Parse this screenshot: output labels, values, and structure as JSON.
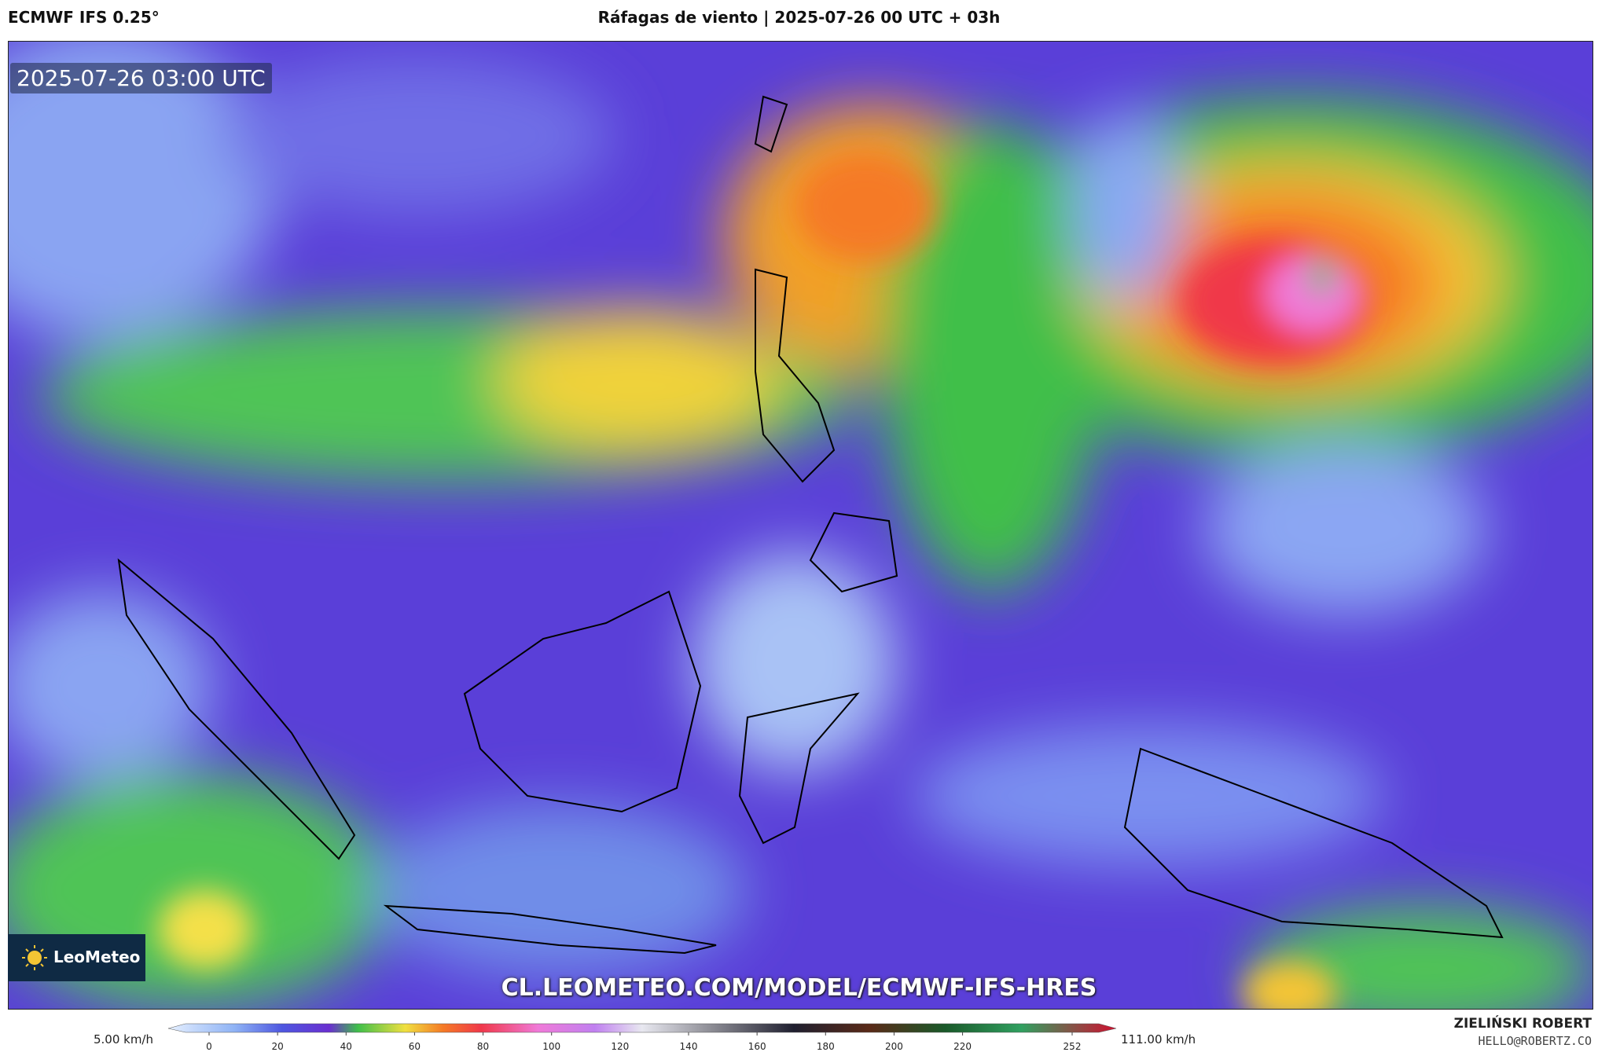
{
  "header": {
    "model": "ECMWF IFS 0.25°",
    "title": "Ráfagas de viento | 2025-07-26 00 UTC + 03h"
  },
  "map": {
    "timestamp": "2025-07-26 03:00 UTC",
    "logo": "LeoMeteo",
    "url": "CL.LEOMETEO.COM/MODEL/ECMWF-IFS-HRES"
  },
  "legend": {
    "min_label": "5.00 km/h",
    "max_label": "111.00 km/h",
    "ticks": [
      0,
      20,
      40,
      60,
      80,
      100,
      120,
      140,
      160,
      180,
      200,
      220,
      252
    ]
  },
  "credit": {
    "author": "ZIELIŃSKI ROBERT",
    "email": "HELLO@ROBERTZ.CO"
  }
}
